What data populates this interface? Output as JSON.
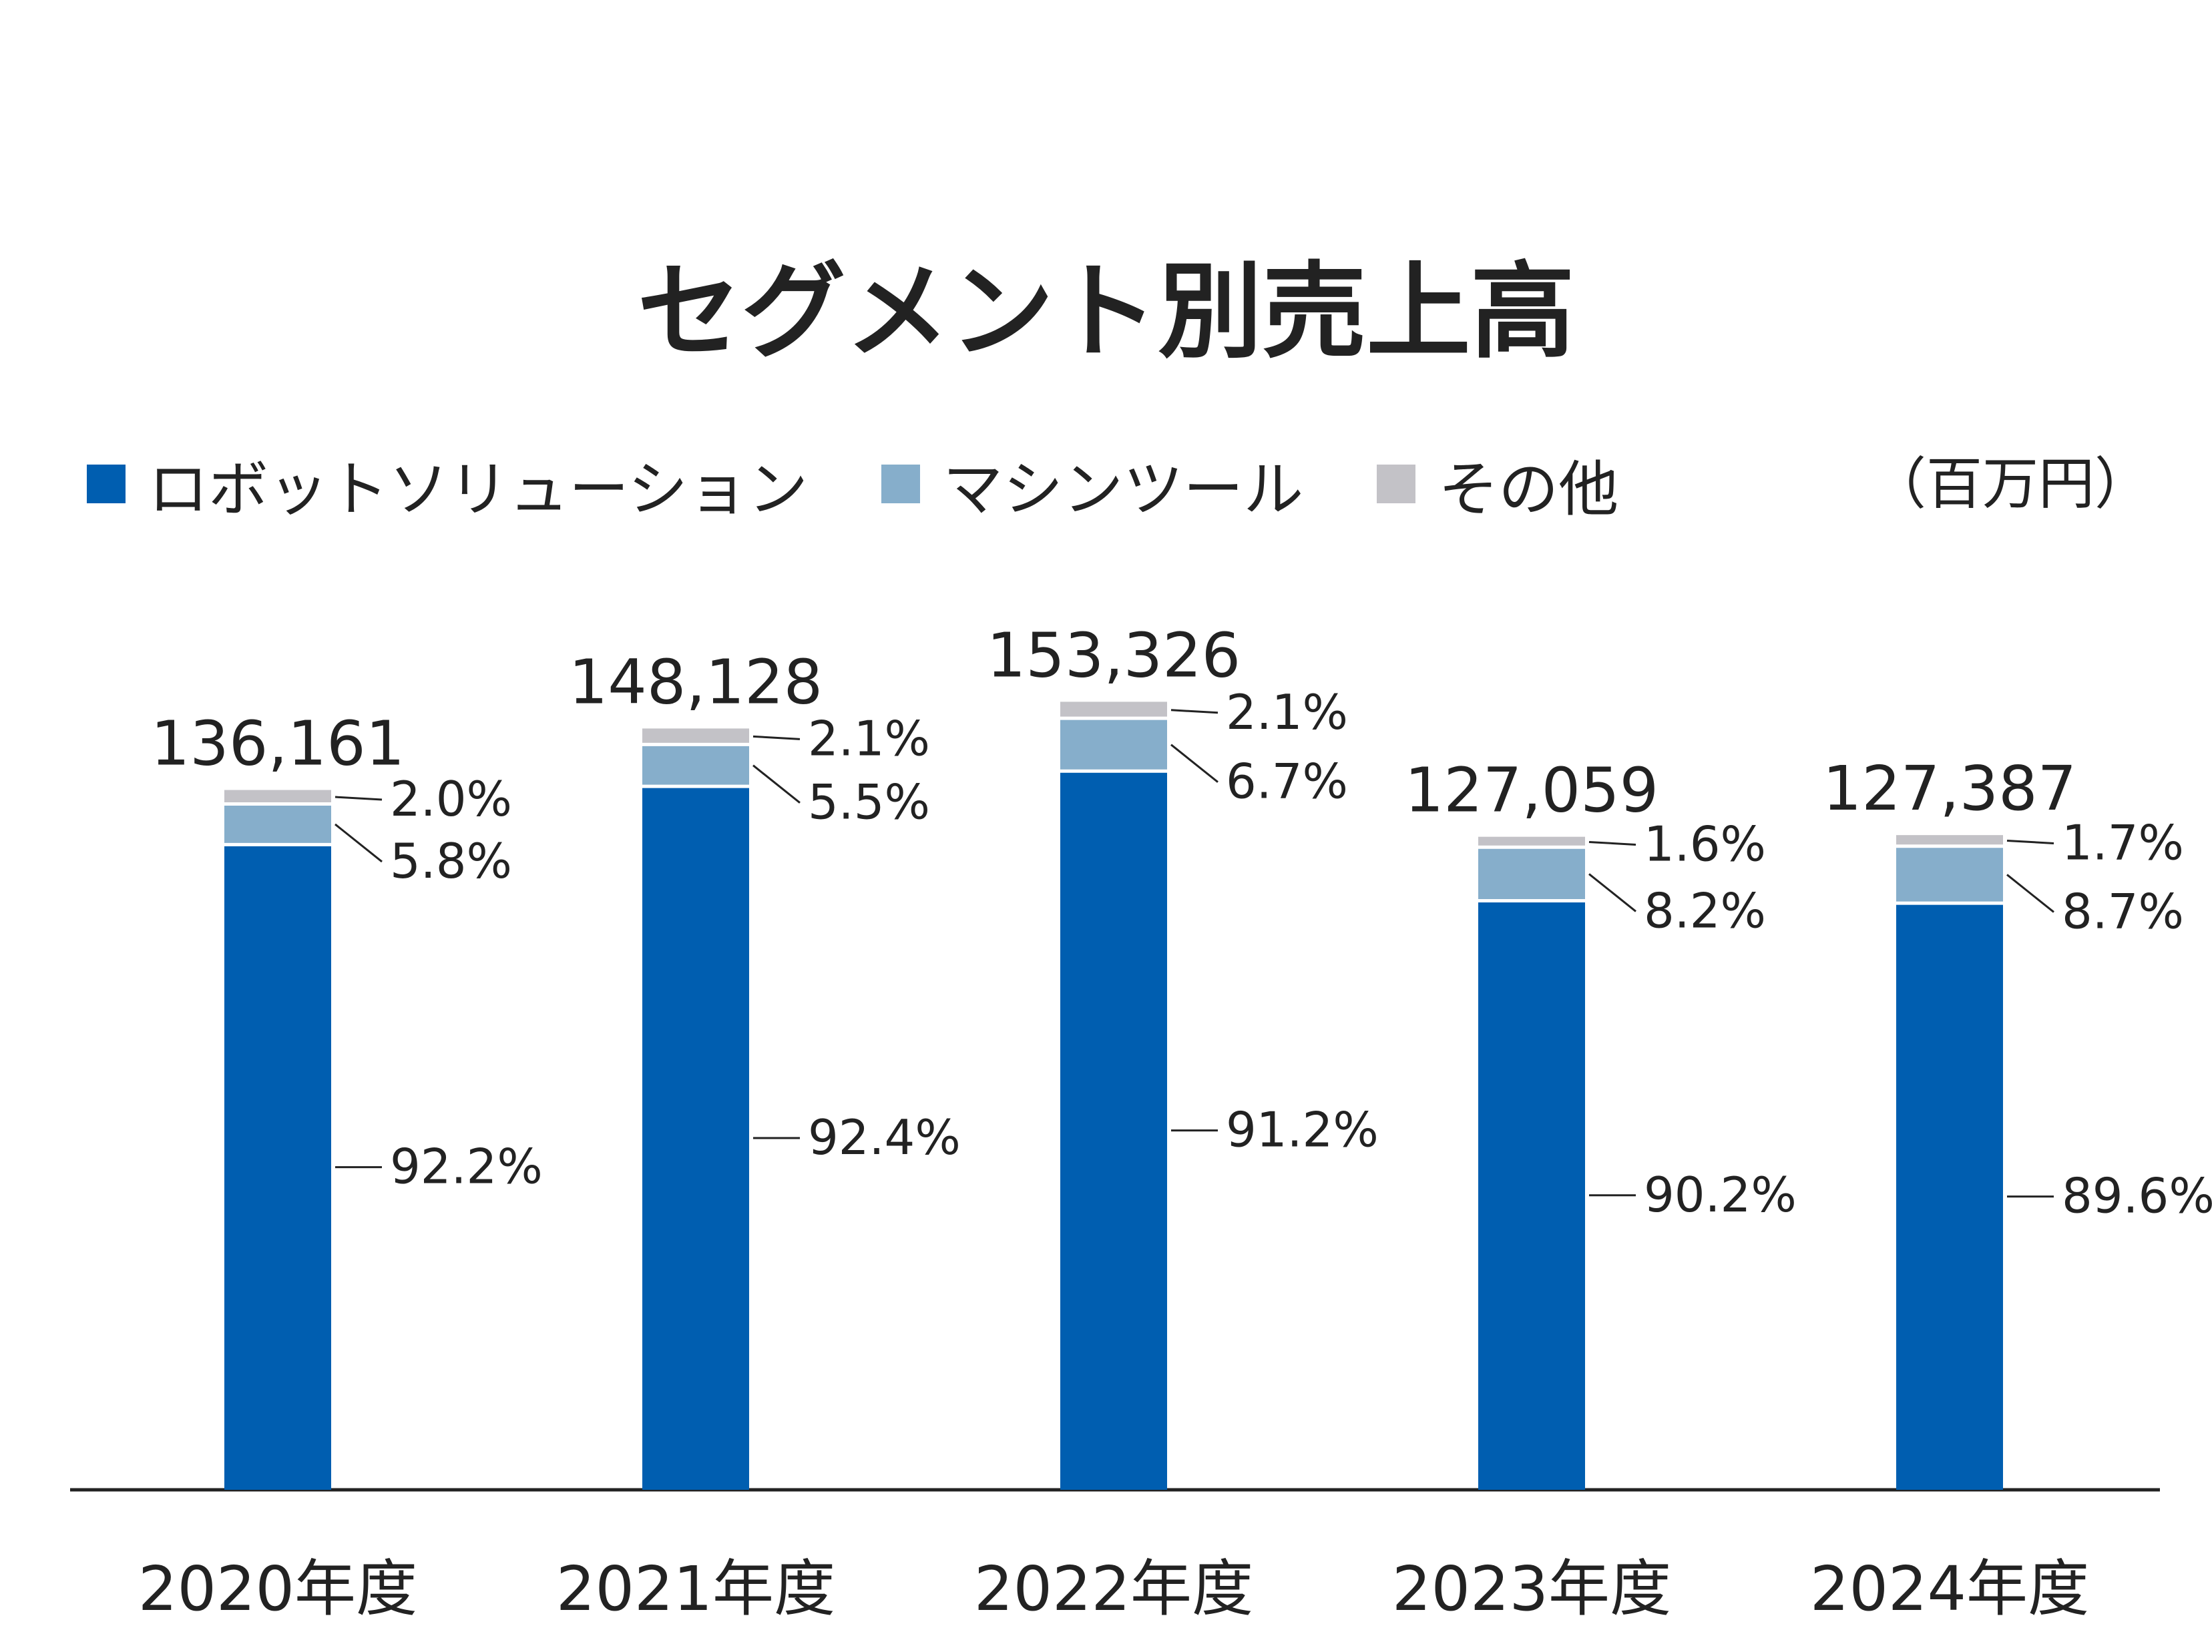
{
  "chart_data": {
    "type": "bar",
    "stacked": true,
    "title": "セグメント別売上高",
    "unit": "（百万円）",
    "legend_position": "top-left",
    "grid": false,
    "ylim": [
      0,
      160000
    ],
    "categories": [
      "2020年度",
      "2021年度",
      "2022年度",
      "2023年度",
      "2024年度"
    ],
    "totals": [
      136161,
      148128,
      153326,
      127059,
      127387
    ],
    "total_labels": [
      "136,161",
      "148,128",
      "153,326",
      "127,059",
      "127,387"
    ],
    "series": [
      {
        "name": "ロボットソリューション",
        "color": "#005EB0",
        "shares": [
          92.2,
          92.4,
          91.2,
          90.2,
          89.6
        ],
        "share_labels": [
          "92.2%",
          "92.4%",
          "91.2%",
          "90.2%",
          "89.6%"
        ]
      },
      {
        "name": "マシンツール",
        "color": "#86AECB",
        "shares": [
          5.8,
          5.5,
          6.7,
          8.2,
          8.7
        ],
        "share_labels": [
          "5.8%",
          "5.5%",
          "6.7%",
          "8.2%",
          "8.7%"
        ]
      },
      {
        "name": "その他",
        "color": "#C3C2C7",
        "shares": [
          2.0,
          2.1,
          2.1,
          1.6,
          1.7
        ],
        "share_labels": [
          "2.0%",
          "2.1%",
          "2.1%",
          "1.6%",
          "1.7%"
        ]
      }
    ]
  }
}
